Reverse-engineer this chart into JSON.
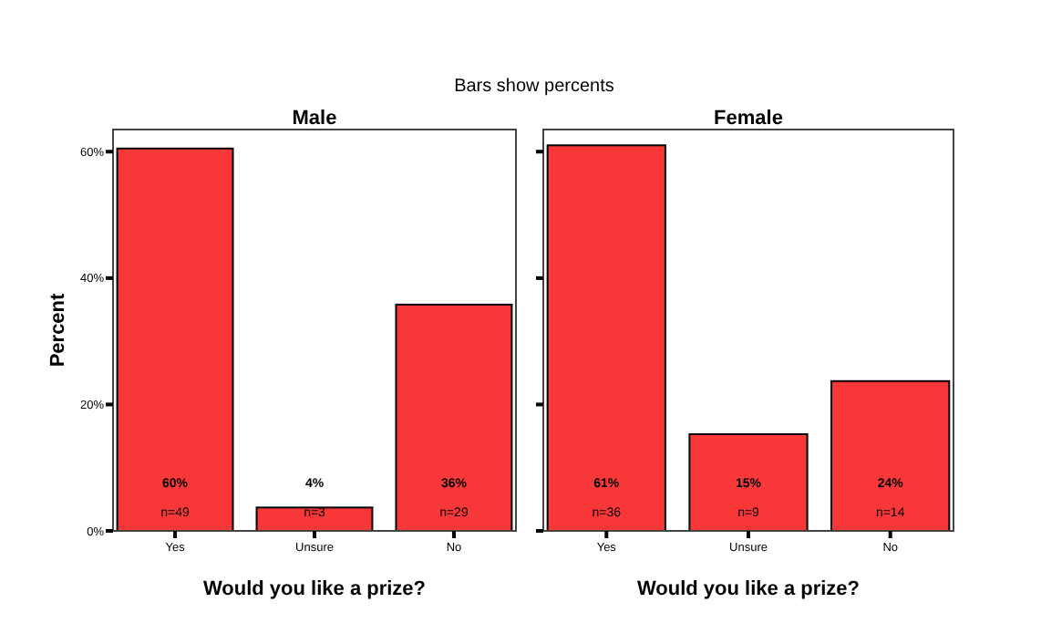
{
  "chart_data": [
    {
      "type": "bar",
      "title": "Male",
      "annotations": [
        "Bars show percents",
        "n=49",
        "n=3",
        "n=29"
      ],
      "xlabel": "Would you like a prize?",
      "ylabel": "Percent",
      "categories": [
        "Yes",
        "Unsure",
        "No"
      ],
      "series": [
        {
          "color": "#f83838",
          "values": [
            60.5,
            3.7,
            35.8
          ],
          "value_labels": [
            "60%",
            "4%",
            "36%"
          ]
        }
      ],
      "ylim": [
        0,
        63.5
      ],
      "yticks": [
        {
          "value": 0,
          "label": "0%"
        },
        {
          "value": 20,
          "label": "20%"
        },
        {
          "value": 40,
          "label": "40%"
        },
        {
          "value": 60,
          "label": "60%"
        }
      ],
      "grid": false
    },
    {
      "type": "bar",
      "title": "Female",
      "annotations": [
        "n=36",
        "n=9",
        "n=14"
      ],
      "xlabel": "Would you like a prize?",
      "categories": [
        "Yes",
        "Unsure",
        "No"
      ],
      "series": [
        {
          "color": "#f83838",
          "values": [
            61.0,
            15.3,
            23.7
          ],
          "value_labels": [
            "61%",
            "15%",
            "24%"
          ]
        }
      ],
      "ylim": [
        0,
        63.5
      ],
      "yticks": [
        {
          "value": 0,
          "label": null
        },
        {
          "value": 20,
          "label": null
        },
        {
          "value": 40,
          "label": null
        },
        {
          "value": 60,
          "label": null
        }
      ],
      "tick_labels": "x",
      "grid": false
    }
  ]
}
